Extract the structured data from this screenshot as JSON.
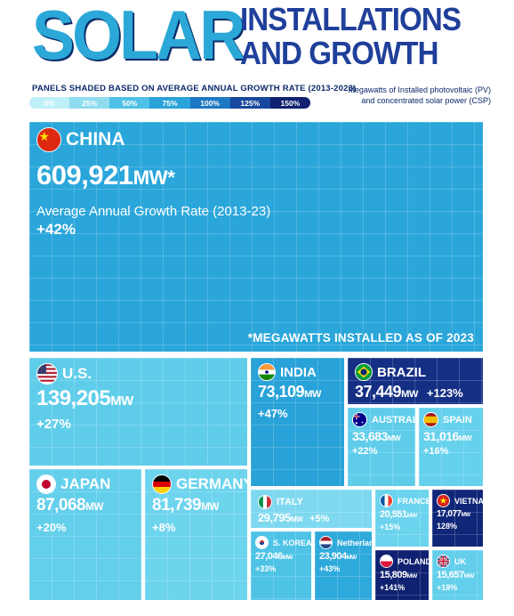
{
  "header": {
    "title_big": "SOLAR",
    "title_line1": "INSTALLATIONS",
    "title_line2": "AND GROWTH",
    "shading_label": "PANELS SHADED BASED ON AVERAGE ANNUAL GROWTH RATE (2013-2023)",
    "description_line1": "Megawatts of Installed photovoltaic (PV)",
    "description_line2": "and concentrated solar power (CSP)",
    "scale": [
      {
        "label": "0%",
        "color": "#bfeff8"
      },
      {
        "label": "25%",
        "color": "#8fdcef"
      },
      {
        "label": "50%",
        "color": "#4fc1e6"
      },
      {
        "label": "75%",
        "color": "#2aa3d9"
      },
      {
        "label": "100%",
        "color": "#1c78c2"
      },
      {
        "label": "125%",
        "color": "#17479e"
      },
      {
        "label": "150%",
        "color": "#0f2170"
      }
    ]
  },
  "china_extra": {
    "growth_caption": "Average Annual Growth Rate (2013-23)",
    "note": "*MEGAWATTS INSTALLED AS OF 2023"
  },
  "chart_data": {
    "type": "treemap",
    "unit": "MW",
    "countries": [
      {
        "name": "CHINA",
        "value": 609921,
        "value_label": "609,921",
        "unit_label": "MW*",
        "growth": 42,
        "growth_label": "+42%",
        "flag": "china-flag-icon",
        "color": "#2aa6da"
      },
      {
        "name": "U.S.",
        "value": 139205,
        "value_label": "139,205",
        "unit_label": "MW",
        "growth": 27,
        "growth_label": "+27%",
        "flag": "usa-flag-icon",
        "color": "#5fcdea"
      },
      {
        "name": "JAPAN",
        "value": 87068,
        "value_label": "87,068",
        "unit_label": "MW",
        "growth": 20,
        "growth_label": "+20%",
        "flag": "japan-flag-icon",
        "color": "#63cfeb"
      },
      {
        "name": "GERMANY",
        "value": 81739,
        "value_label": "81,739",
        "unit_label": "MW",
        "growth": 8,
        "growth_label": "+8%",
        "flag": "germany-flag-icon",
        "color": "#6dd4ee"
      },
      {
        "name": "INDIA",
        "value": 73109,
        "value_label": "73,109",
        "unit_label": "MW",
        "growth": 47,
        "growth_label": "+47%",
        "flag": "india-flag-icon",
        "color": "#28a2d8"
      },
      {
        "name": "BRAZIL",
        "value": 37449,
        "value_label": "37,449",
        "unit_label": "MW",
        "growth": 123,
        "growth_label": "+123%",
        "flag": "brazil-flag-icon",
        "color": "#152f85"
      },
      {
        "name": "AUSTRALIA",
        "value": 33683,
        "value_label": "33,683",
        "unit_label": "MW",
        "growth": 22,
        "growth_label": "+22%",
        "flag": "australia-flag-icon",
        "color": "#5fcdea"
      },
      {
        "name": "SPAIN",
        "value": 31016,
        "value_label": "31,016",
        "unit_label": "MW",
        "growth": 16,
        "growth_label": "+16%",
        "flag": "spain-flag-icon",
        "color": "#66d1ec"
      },
      {
        "name": "ITALY",
        "value": 29795,
        "value_label": "29,795",
        "unit_label": "MW",
        "growth": 5,
        "growth_label": "+5%",
        "flag": "italy-flag-icon",
        "color": "#7ed9f0"
      },
      {
        "name": "FRANCE",
        "value": 20551,
        "value_label": "20,551",
        "unit_label": "MW",
        "growth": 15,
        "growth_label": "+15%",
        "flag": "france-flag-icon",
        "color": "#6bd3ed"
      },
      {
        "name": "VIETNAM",
        "value": 17077,
        "value_label": "17,077",
        "unit_label": "MW",
        "growth": 128,
        "growth_label": "128%",
        "flag": "vietnam-flag-icon",
        "color": "#102678"
      },
      {
        "name": "S. KOREA",
        "value": 27046,
        "value_label": "27,046",
        "unit_label": "MW",
        "growth": 33,
        "growth_label": "+33%",
        "flag": "south-korea-flag-icon",
        "color": "#4ec3e6"
      },
      {
        "name": "Netherlands",
        "value": 23904,
        "value_label": "23,904",
        "unit_label": "MW",
        "growth": 43,
        "growth_label": "+43%",
        "flag": "netherlands-flag-icon",
        "color": "#2ea9db"
      },
      {
        "name": "POLAND",
        "value": 15809,
        "value_label": "15,809",
        "unit_label": "MW",
        "growth": 141,
        "growth_label": "+141%",
        "flag": "poland-flag-icon",
        "color": "#0f2170"
      },
      {
        "name": "UK",
        "value": 15657,
        "value_label": "15,657",
        "unit_label": "MW",
        "growth": 18,
        "growth_label": "+18%",
        "flag": "uk-flag-icon",
        "color": "#63cfeb"
      }
    ]
  }
}
